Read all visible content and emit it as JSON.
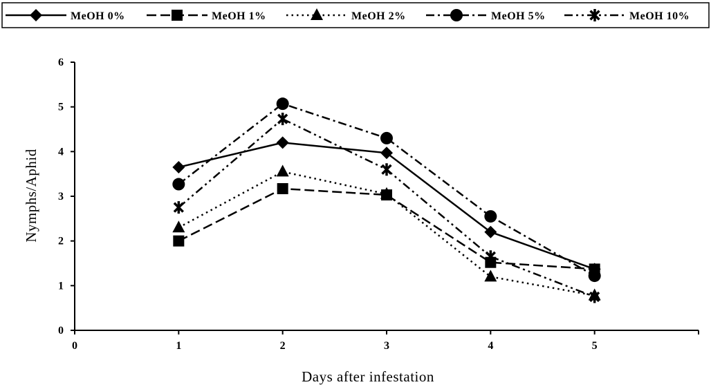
{
  "chart_data": {
    "type": "line",
    "title": "",
    "xlabel": "Days after infestation",
    "ylabel": "Nymphs/Aphid",
    "xlim": [
      0,
      6
    ],
    "ylim": [
      0,
      6
    ],
    "x_ticks": [
      "0",
      "1",
      "2",
      "3",
      "4",
      "5"
    ],
    "y_ticks": [
      "0",
      "1",
      "2",
      "3",
      "4",
      "5",
      "6"
    ],
    "grid": false,
    "legend_position": "top",
    "x": [
      1,
      2,
      3,
      4,
      5
    ],
    "series": [
      {
        "name": "MeOH 0%",
        "values": [
          3.65,
          4.2,
          3.97,
          2.2,
          1.37
        ],
        "marker": "diamond",
        "dash": "solid"
      },
      {
        "name": "MeOH 1%",
        "values": [
          2.0,
          3.17,
          3.03,
          1.52,
          1.37
        ],
        "marker": "square",
        "dash": "dashed"
      },
      {
        "name": "MeOH 2%",
        "values": [
          2.3,
          3.55,
          3.05,
          1.2,
          0.78
        ],
        "marker": "triangle",
        "dash": "dotted"
      },
      {
        "name": "MeOH 5%",
        "values": [
          3.27,
          5.07,
          4.3,
          2.55,
          1.22
        ],
        "marker": "circle",
        "dash": "dashdot"
      },
      {
        "name": "MeOH 10%",
        "values": [
          2.75,
          4.73,
          3.6,
          1.65,
          0.75
        ],
        "marker": "star",
        "dash": "dashdotdot"
      }
    ]
  }
}
